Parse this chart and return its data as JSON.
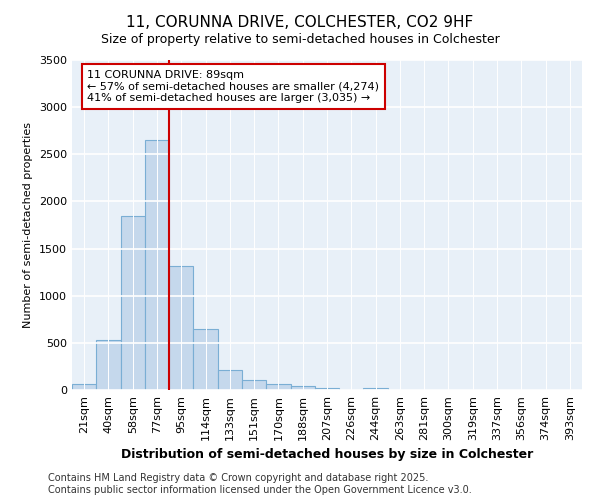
{
  "title1": "11, CORUNNA DRIVE, COLCHESTER, CO2 9HF",
  "title2": "Size of property relative to semi-detached houses in Colchester",
  "xlabel": "Distribution of semi-detached houses by size in Colchester",
  "ylabel": "Number of semi-detached properties",
  "categories": [
    "21sqm",
    "40sqm",
    "58sqm",
    "77sqm",
    "95sqm",
    "114sqm",
    "133sqm",
    "151sqm",
    "170sqm",
    "188sqm",
    "207sqm",
    "226sqm",
    "244sqm",
    "263sqm",
    "281sqm",
    "300sqm",
    "319sqm",
    "337sqm",
    "356sqm",
    "374sqm",
    "393sqm"
  ],
  "values": [
    60,
    530,
    1850,
    2650,
    1310,
    645,
    210,
    105,
    60,
    40,
    25,
    0,
    20,
    0,
    0,
    0,
    0,
    0,
    0,
    0,
    0
  ],
  "bar_color": "#c5d8ec",
  "bar_edge_color": "#7aaed4",
  "vline_x_index": 4,
  "vline_color": "#cc0000",
  "annotation_line1": "11 CORUNNA DRIVE: 89sqm",
  "annotation_line2": "← 57% of semi-detached houses are smaller (4,274)",
  "annotation_line3": "41% of semi-detached houses are larger (3,035) →",
  "annotation_box_facecolor": "white",
  "annotation_box_edgecolor": "#cc0000",
  "ylim": [
    0,
    3500
  ],
  "yticks": [
    0,
    500,
    1000,
    1500,
    2000,
    2500,
    3000,
    3500
  ],
  "footer1": "Contains HM Land Registry data © Crown copyright and database right 2025.",
  "footer2": "Contains public sector information licensed under the Open Government Licence v3.0.",
  "bg_color": "#ffffff",
  "plot_bg_color": "#e8f0f8",
  "grid_color": "#ffffff",
  "title_fontsize": 11,
  "subtitle_fontsize": 9,
  "xlabel_fontsize": 9,
  "ylabel_fontsize": 8,
  "tick_fontsize": 8,
  "annotation_fontsize": 8,
  "footer_fontsize": 7
}
